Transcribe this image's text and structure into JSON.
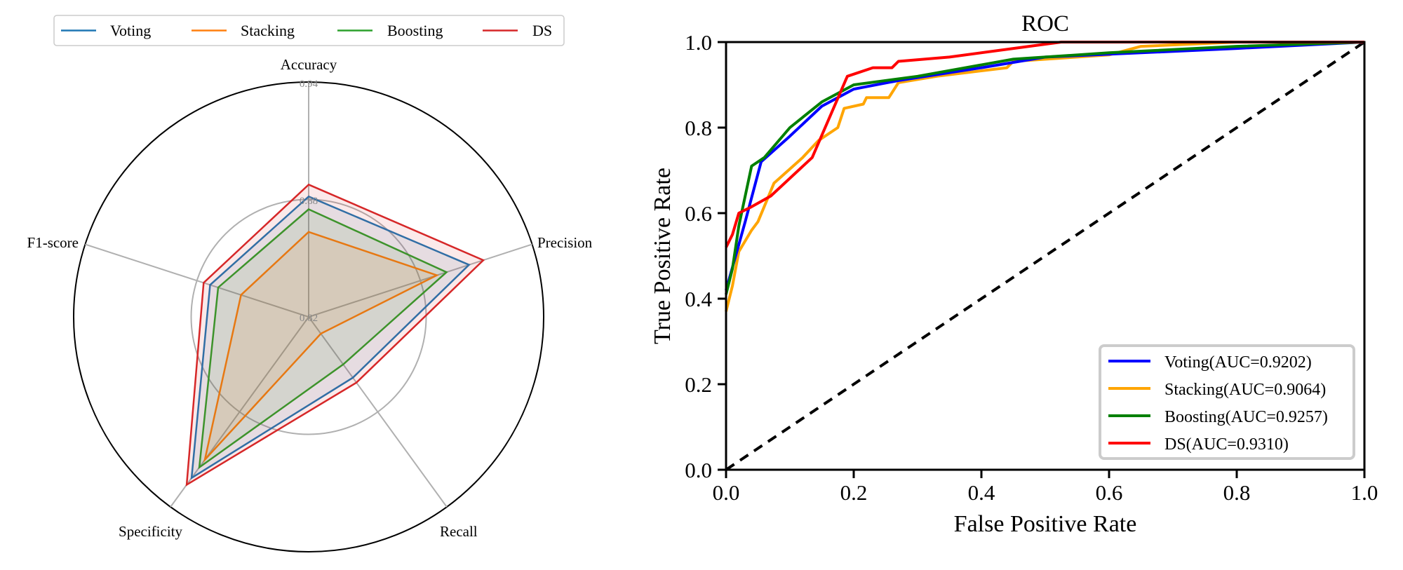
{
  "chart_data": [
    {
      "type": "radar",
      "axes": [
        "Accuracy",
        "Precision",
        "Recall",
        "Specificity",
        "F1-score"
      ],
      "rlim": [
        0.82,
        0.94
      ],
      "rticks": [
        "0.82",
        "0.88",
        "0.94"
      ],
      "legend": {
        "placement": "top"
      },
      "series": [
        {
          "name": "Voting",
          "color": "#1f77b4",
          "values": [
            0.8815,
            0.9061,
            0.8584,
            0.9217,
            0.8729
          ]
        },
        {
          "name": "Stacking",
          "color": "#ff7f0e",
          "values": [
            0.8634,
            0.8888,
            0.8306,
            0.9102,
            0.8563
          ]
        },
        {
          "name": "Boosting",
          "color": "#2ca02c",
          "values": [
            0.875,
            0.894,
            0.85,
            0.915,
            0.8686
          ]
        },
        {
          "name": "DS",
          "color": "#d62728",
          "values": [
            0.8876,
            0.9138,
            0.8615,
            0.926,
            0.8764
          ]
        }
      ]
    },
    {
      "type": "line",
      "title": "ROC",
      "xlabel": "False Positive Rate",
      "ylabel": "True Positive Rate",
      "xlim": [
        0,
        1
      ],
      "ylim": [
        0,
        1
      ],
      "xticks": [
        "0.0",
        "0.2",
        "0.4",
        "0.6",
        "0.8",
        "1.0"
      ],
      "yticks": [
        "0.0",
        "0.2",
        "0.4",
        "0.6",
        "0.8",
        "1.0"
      ],
      "legend": {
        "placement": "lower right"
      },
      "diagonal": {
        "color": "#000000",
        "style": "dashed"
      },
      "series": [
        {
          "name": "Voting",
          "label": "Voting(AUC=0.9202)",
          "color": "#0000ff",
          "points": [
            [
              0,
              0.42
            ],
            [
              0.015,
              0.5
            ],
            [
              0.03,
              0.58
            ],
            [
              0.055,
              0.72
            ],
            [
              0.1,
              0.78
            ],
            [
              0.15,
              0.85
            ],
            [
              0.2,
              0.89
            ],
            [
              0.27,
              0.91
            ],
            [
              0.4,
              0.94
            ],
            [
              0.5,
              0.965
            ],
            [
              0.65,
              0.975
            ],
            [
              0.8,
              0.985
            ],
            [
              1,
              1
            ]
          ]
        },
        {
          "name": "Stacking",
          "label": "Stacking(AUC=0.9064)",
          "color": "#ffa500",
          "points": [
            [
              0,
              0.37
            ],
            [
              0.01,
              0.43
            ],
            [
              0.02,
              0.51
            ],
            [
              0.04,
              0.56
            ],
            [
              0.05,
              0.58
            ],
            [
              0.075,
              0.67
            ],
            [
              0.12,
              0.73
            ],
            [
              0.145,
              0.77
            ],
            [
              0.175,
              0.8
            ],
            [
              0.185,
              0.845
            ],
            [
              0.215,
              0.855
            ],
            [
              0.22,
              0.87
            ],
            [
              0.255,
              0.87
            ],
            [
              0.27,
              0.905
            ],
            [
              0.33,
              0.92
            ],
            [
              0.44,
              0.94
            ],
            [
              0.45,
              0.955
            ],
            [
              0.55,
              0.965
            ],
            [
              0.6,
              0.97
            ],
            [
              0.65,
              0.99
            ],
            [
              0.8,
              1.0
            ],
            [
              1,
              1
            ]
          ]
        },
        {
          "name": "Boosting",
          "label": "Boosting(AUC=0.9257)",
          "color": "#008000",
          "points": [
            [
              0,
              0.41
            ],
            [
              0.01,
              0.47
            ],
            [
              0.02,
              0.57
            ],
            [
              0.04,
              0.71
            ],
            [
              0.06,
              0.73
            ],
            [
              0.1,
              0.8
            ],
            [
              0.15,
              0.86
            ],
            [
              0.2,
              0.9
            ],
            [
              0.3,
              0.92
            ],
            [
              0.45,
              0.96
            ],
            [
              0.6,
              0.975
            ],
            [
              0.8,
              0.99
            ],
            [
              1,
              1
            ]
          ]
        },
        {
          "name": "DS",
          "label": "DS(AUC=0.9310)",
          "color": "#ff0000",
          "points": [
            [
              0,
              0.52
            ],
            [
              0.01,
              0.55
            ],
            [
              0.02,
              0.6
            ],
            [
              0.04,
              0.615
            ],
            [
              0.07,
              0.64
            ],
            [
              0.135,
              0.73
            ],
            [
              0.19,
              0.92
            ],
            [
              0.23,
              0.94
            ],
            [
              0.26,
              0.94
            ],
            [
              0.27,
              0.955
            ],
            [
              0.35,
              0.965
            ],
            [
              0.45,
              0.985
            ],
            [
              0.525,
              1.0
            ],
            [
              1,
              1
            ]
          ]
        }
      ]
    }
  ]
}
